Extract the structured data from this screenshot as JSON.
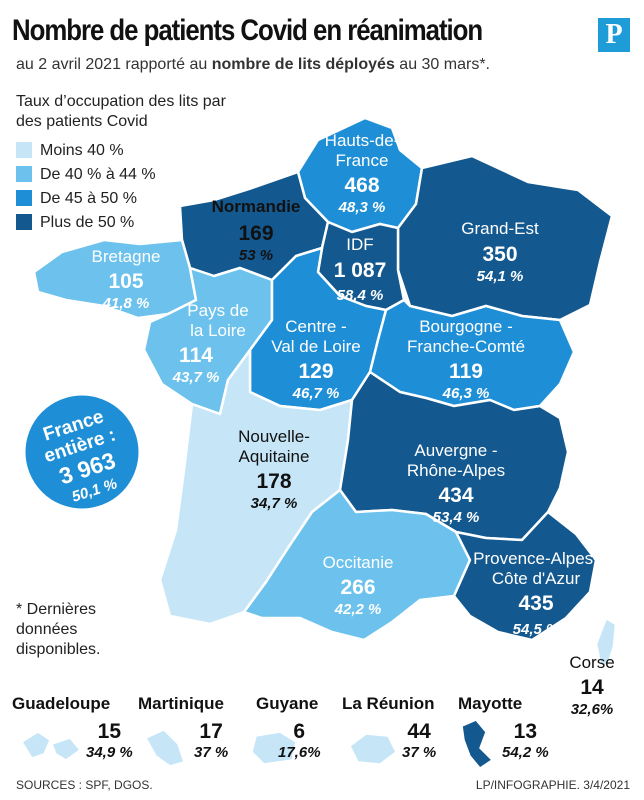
{
  "header": {
    "title": "Nombre de patients Covid en réanimation",
    "subtitle_pre": "au 2 avril 2021 rapporté au ",
    "subtitle_bold": "nombre de lits déployés",
    "subtitle_post": " au 30 mars*.",
    "logo_letter": "P"
  },
  "legend": {
    "title": "Taux d’occupation des lits par des patients Covid",
    "items": [
      {
        "label": "Moins 40 %",
        "color": "#c6e6f8"
      },
      {
        "label": "De 40 % à 44 %",
        "color": "#6cc2ec"
      },
      {
        "label": "De 45 à 50 %",
        "color": "#1e8fd6"
      },
      {
        "label": "Plus de 50 %",
        "color": "#13588f"
      }
    ]
  },
  "regions": {
    "hauts_de_france": {
      "name1": "Hauts-de-",
      "name2": "France",
      "value": "468",
      "pct": "48,3 %",
      "color": "#1e8fd6"
    },
    "normandie": {
      "name1": "Normandie",
      "value": "169",
      "pct": "53 %",
      "color": "#13588f"
    },
    "grand_est": {
      "name1": "Grand-Est",
      "value": "350",
      "pct": "54,1 %",
      "color": "#13588f"
    },
    "idf": {
      "name1": "IDF",
      "value": "1 087",
      "pct": "58,4 %",
      "color": "#13588f"
    },
    "bretagne": {
      "name1": "Bretagne",
      "value": "105",
      "pct": "41,8 %",
      "color": "#6cc2ec"
    },
    "pays_de_la_loire": {
      "name1": "Pays de",
      "name2": "la Loire",
      "value": "114",
      "pct": "43,7 %",
      "color": "#6cc2ec"
    },
    "centre": {
      "name1": "Centre -",
      "name2": "Val de Loire",
      "value": "129",
      "pct": "46,7 %",
      "color": "#1e8fd6"
    },
    "bourgogne": {
      "name1": "Bourgogne -",
      "name2": "Franche-Comté",
      "value": "119",
      "pct": "46,3 %",
      "color": "#1e8fd6"
    },
    "nouvelle_aquitaine": {
      "name1": "Nouvelle-",
      "name2": "Aquitaine",
      "value": "178",
      "pct": "34,7 %",
      "color": "#c6e6f8"
    },
    "auvergne": {
      "name1": "Auvergne -",
      "name2": "Rhône-Alpes",
      "value": "434",
      "pct": "53,4 %",
      "color": "#13588f"
    },
    "occitanie": {
      "name1": "Occitanie",
      "value": "266",
      "pct": "42,2 %",
      "color": "#6cc2ec"
    },
    "paca": {
      "name1": "Provence-Alpes-",
      "name2": "Côte d'Azur",
      "value": "435",
      "pct": "54,5 %",
      "color": "#13588f"
    },
    "corse": {
      "name1": "Corse",
      "value": "14",
      "pct": "32,6%",
      "color": "#c6e6f8"
    }
  },
  "france_total": {
    "line1": "France",
    "line2": "entière :",
    "value": "3 963",
    "pct": "50,1 %",
    "color": "#1e8fd6"
  },
  "note": "* Dernières données disponibles.",
  "overseas": [
    {
      "name": "Guadeloupe",
      "value": "15",
      "pct": "34,9 %",
      "color": "#c6e6f8"
    },
    {
      "name": "Martinique",
      "value": "17",
      "pct": "37 %",
      "color": "#c6e6f8"
    },
    {
      "name": "Guyane",
      "value": "6",
      "pct": "17,6%",
      "color": "#c6e6f8"
    },
    {
      "name": "La Réunion",
      "value": "44",
      "pct": "37 %",
      "color": "#c6e6f8"
    },
    {
      "name": "Mayotte",
      "value": "13",
      "pct": "54,2 %",
      "color": "#13588f"
    }
  ],
  "footer": {
    "sources": "SOURCES : SPF, DGOS.",
    "credit": "LP/INFOGRAPHIE.  3/4/2021"
  }
}
